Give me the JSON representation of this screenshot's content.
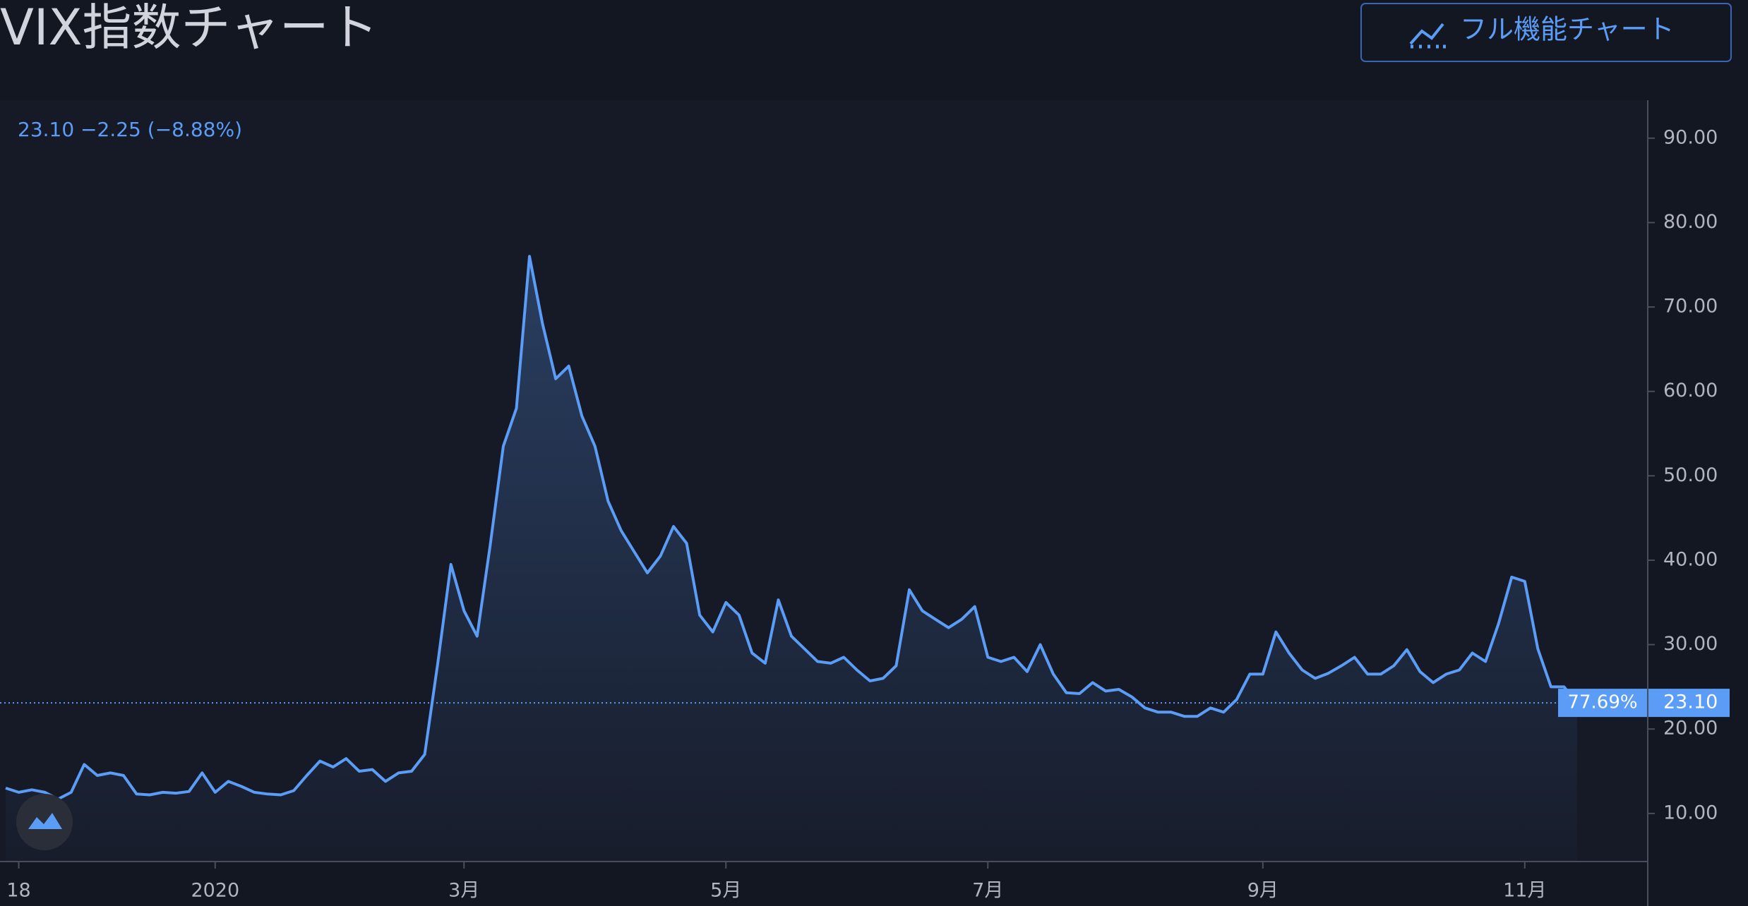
{
  "chart_data": {
    "type": "line",
    "title": "VIX指数チャート",
    "button_label": "フル機能チャート",
    "legend_text": "23.10 −2.25 (−8.88%)",
    "categories": [
      null,
      "18",
      null,
      null,
      null,
      null,
      null,
      null,
      null,
      null,
      null,
      null,
      null,
      null,
      null,
      null,
      "2020",
      null,
      null,
      null,
      null,
      null,
      null,
      null,
      null,
      null,
      null,
      null,
      null,
      null,
      null,
      null,
      null,
      null,
      null,
      "3月",
      null,
      null,
      null,
      null,
      null,
      null,
      null,
      null,
      null,
      null,
      null,
      null,
      null,
      null,
      null,
      null,
      null,
      null,
      null,
      "5月",
      null,
      null,
      null,
      null,
      null,
      null,
      null,
      null,
      null,
      null,
      null,
      null,
      null,
      null,
      null,
      null,
      null,
      null,
      null,
      "7月",
      null,
      null,
      null,
      null,
      null,
      null,
      null,
      null,
      null,
      null,
      null,
      null,
      null,
      null,
      null,
      null,
      null,
      null,
      null,
      null,
      "9月",
      null,
      null,
      null,
      null,
      null,
      null,
      null,
      null,
      null,
      null,
      null,
      null,
      null,
      null,
      null,
      null,
      null,
      null,
      null,
      "11月",
      null,
      null,
      null,
      null
    ],
    "series": [
      {
        "name": "VIX",
        "color": "#5b9cf6",
        "values": [
          13,
          12.5,
          12.8,
          12.5,
          11.7,
          12.5,
          15.8,
          14.5,
          14.8,
          14.5,
          12.3,
          12.2,
          12.5,
          12.4,
          12.6,
          14.8,
          12.5,
          13.8,
          13.2,
          12.5,
          12.3,
          12.2,
          12.7,
          14.5,
          16.2,
          15.5,
          16.5,
          15,
          15.2,
          13.8,
          14.8,
          15,
          17,
          27.8,
          39.5,
          34,
          31,
          41.8,
          53.5,
          58,
          76,
          68,
          61.5,
          63,
          57.1,
          53.5,
          47,
          43.5,
          41,
          38.5,
          40.5,
          44,
          42,
          33.5,
          31.5,
          35,
          33.5,
          29,
          27.8,
          35.3,
          31,
          29.5,
          28,
          27.8,
          28.5,
          27,
          25.7,
          26,
          27.5,
          36.5,
          34,
          33,
          32,
          33,
          34.5,
          28.5,
          28,
          28.5,
          26.8,
          30,
          26.5,
          24.3,
          24.2,
          25.5,
          24.5,
          24.7,
          23.8,
          22.5,
          22,
          22,
          21.5,
          21.5,
          22.5,
          22,
          23.5,
          26.5,
          26.5,
          31.5,
          29,
          27,
          26,
          26.6,
          27.5,
          28.5,
          26.5,
          26.5,
          27.5,
          29.4,
          26.8,
          25.5,
          26.5,
          27,
          29,
          28,
          32.5,
          38,
          37.5,
          29.5,
          25,
          25,
          23.1
        ]
      }
    ],
    "ylim": [
      4.3,
      94.5
    ],
    "yticks": [
      {
        "value": 10,
        "label": "10.00"
      },
      {
        "value": 20,
        "label": "20.00"
      },
      {
        "value": 30,
        "label": "30.00"
      },
      {
        "value": 40,
        "label": "40.00"
      },
      {
        "value": 50,
        "label": "50.00"
      },
      {
        "value": 60,
        "label": "60.00"
      },
      {
        "value": 70,
        "label": "70.00"
      },
      {
        "value": 80,
        "label": "80.00"
      },
      {
        "value": 90,
        "label": "90.00"
      }
    ],
    "price_label": {
      "value": 23.1,
      "label": "23.10"
    },
    "percent_label": "77.69%"
  }
}
